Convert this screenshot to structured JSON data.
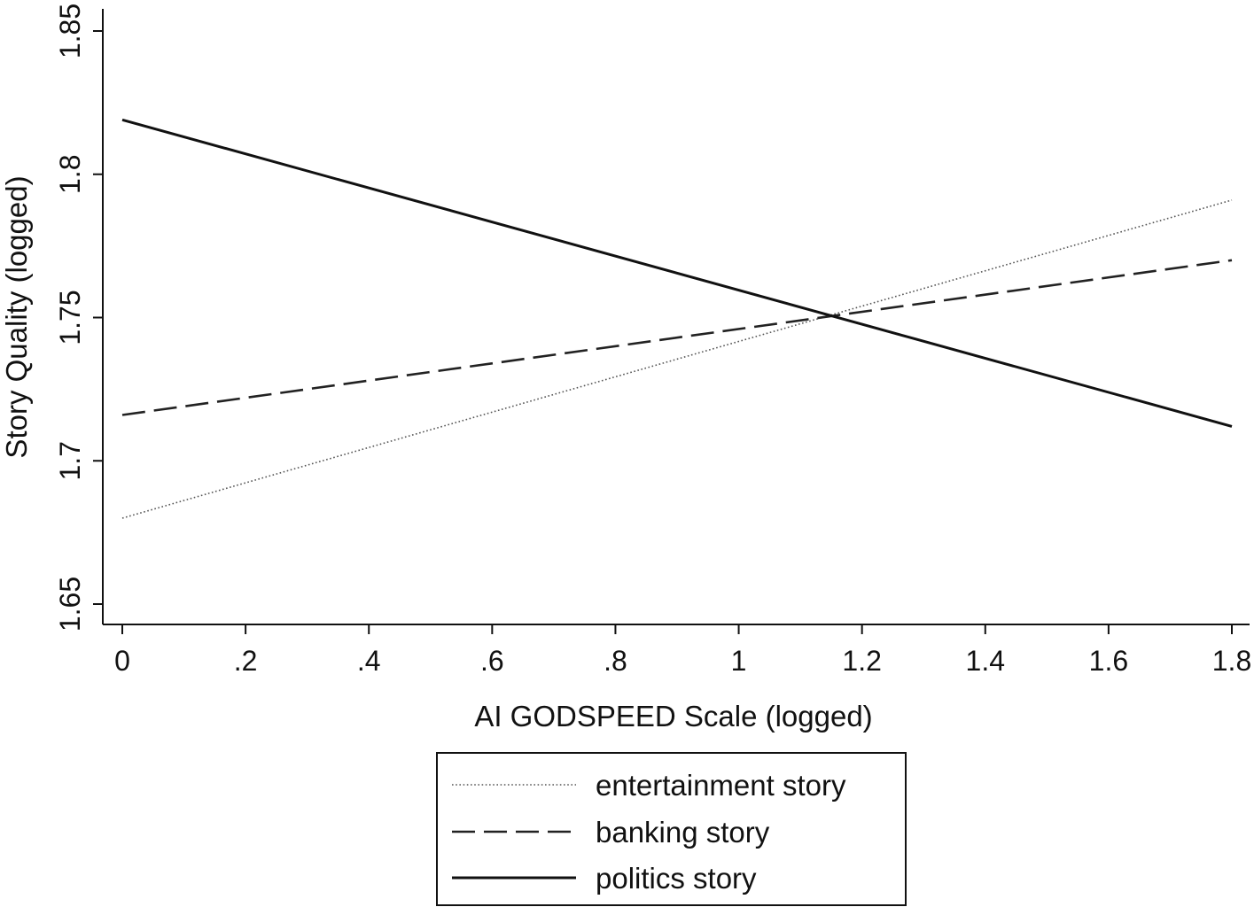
{
  "chart_data": {
    "type": "line",
    "title": "",
    "xlabel": "AI GODSPEED Scale (logged)",
    "ylabel": "Story Quality (logged)",
    "xlim": [
      0,
      1.8
    ],
    "ylim": [
      1.65,
      1.85
    ],
    "x_ticks": [
      {
        "value": 0,
        "label": "0"
      },
      {
        "value": 0.2,
        "label": ".2"
      },
      {
        "value": 0.4,
        "label": ".4"
      },
      {
        "value": 0.6,
        "label": ".6"
      },
      {
        "value": 0.8,
        "label": ".8"
      },
      {
        "value": 1.0,
        "label": "1"
      },
      {
        "value": 1.2,
        "label": "1.2"
      },
      {
        "value": 1.4,
        "label": "1.4"
      },
      {
        "value": 1.6,
        "label": "1.6"
      },
      {
        "value": 1.8,
        "label": "1.8"
      }
    ],
    "y_ticks": [
      {
        "value": 1.65,
        "label": "1.65"
      },
      {
        "value": 1.7,
        "label": "1.7"
      },
      {
        "value": 1.75,
        "label": "1.75"
      },
      {
        "value": 1.8,
        "label": "1.8"
      },
      {
        "value": 1.85,
        "label": "1.85"
      }
    ],
    "grid": false,
    "legend_position": "bottom",
    "series": [
      {
        "name": "entertainment story",
        "style": "dotted",
        "color": "#555555",
        "x": [
          0,
          1.8
        ],
        "y": [
          1.68,
          1.791
        ]
      },
      {
        "name": "banking story",
        "style": "dashed",
        "color": "#222222",
        "x": [
          0,
          1.8
        ],
        "y": [
          1.716,
          1.77
        ]
      },
      {
        "name": "politics story",
        "style": "solid",
        "color": "#111111",
        "x": [
          0,
          1.8
        ],
        "y": [
          1.819,
          1.712
        ]
      }
    ]
  }
}
